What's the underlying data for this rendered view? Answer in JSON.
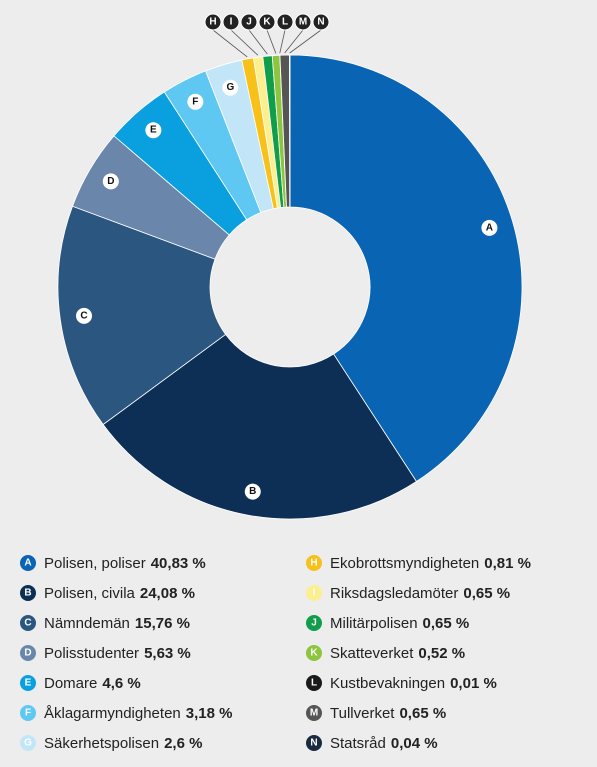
{
  "chart_data": {
    "type": "pie",
    "donut": true,
    "letters": [
      "A",
      "B",
      "C",
      "D",
      "E",
      "F",
      "G",
      "H",
      "I",
      "J",
      "K",
      "L",
      "M",
      "N"
    ],
    "categories": [
      "Polisen, poliser",
      "Polisen, civila",
      "Nämndemän",
      "Polisstudenter",
      "Domare",
      "Åklagarmyndigheten",
      "Säkerhetspolisen",
      "Ekobrottsmyndigheten",
      "Riksdagsledamöter",
      "Militärpolisen",
      "Skatteverket",
      "Kustbevakningen",
      "Tullverket",
      "Statsråd"
    ],
    "values": [
      40.83,
      24.08,
      15.76,
      5.63,
      4.6,
      3.18,
      2.6,
      0.81,
      0.65,
      0.65,
      0.52,
      0.01,
      0.65,
      0.04
    ],
    "value_labels": [
      "40,83 %",
      "24,08 %",
      "15,76 %",
      "5,63 %",
      "4,6 %",
      "3,18 %",
      "2,6 %",
      "0,81 %",
      "0,65 %",
      "0,65 %",
      "0,52 %",
      "0,01 %",
      "0,65 %",
      "0,04 %"
    ],
    "colors": [
      "#0a64b4",
      "#0d2f55",
      "#2a5680",
      "#6a87ab",
      "#0aa0e0",
      "#5ec8f2",
      "#c2e6f8",
      "#f7c11a",
      "#fbef8f",
      "#109e4a",
      "#8dc53e",
      "#1a1a1a",
      "#555555",
      "#1a2a40"
    ]
  }
}
